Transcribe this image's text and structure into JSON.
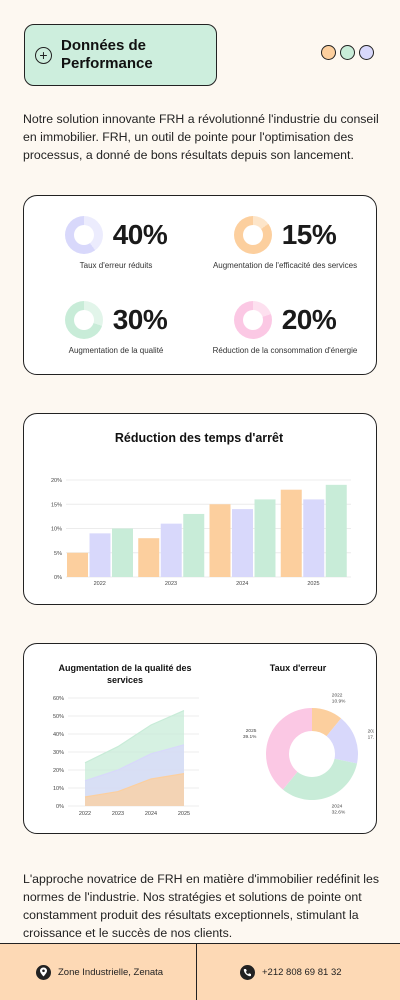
{
  "header": {
    "title_line1": "Données de",
    "title_line2": "Performance",
    "plus_glyph": "+",
    "dot_colors": [
      "#fccf9e",
      "#c8ecd8",
      "#d8d8fb"
    ]
  },
  "intro": "Notre solution innovante FRH a révolutionné l'industrie du conseil en immobilier. FRH, un outil de pointe pour l'optimisation des processus, a donné de bons résultats depuis son lancement.",
  "stats": [
    {
      "value": "40%",
      "fraction": 0.4,
      "label": "Taux d'erreur réduits",
      "color": "#d8d8fb",
      "track": "#ececfd"
    },
    {
      "value": "15%",
      "fraction": 0.15,
      "label": "Augmentation de l'efficacité des services",
      "color": "#fccf9e",
      "track": "#fde5c9"
    },
    {
      "value": "30%",
      "fraction": 0.3,
      "label": "Augmentation de la qualité",
      "color": "#c8ecd8",
      "track": "#e2f5ea"
    },
    {
      "value": "20%",
      "fraction": 0.2,
      "label": "Réduction de la consommation d'énergie",
      "color": "#fbc8e4",
      "track": "#fde0ef"
    }
  ],
  "chart_data": [
    {
      "type": "bar",
      "title": "Réduction des temps d'arrêt",
      "categories": [
        "2022",
        "2023",
        "2024",
        "2025"
      ],
      "yticks": [
        "0%",
        "5%",
        "10%",
        "15%",
        "20%"
      ],
      "ylim": [
        0,
        20
      ],
      "series": [
        {
          "values": [
            5,
            8,
            15,
            18
          ],
          "color": "#fccf9e"
        },
        {
          "values": [
            9,
            11,
            14,
            16
          ],
          "color": "#d8d8fb"
        },
        {
          "values": [
            10,
            13,
            16,
            19
          ],
          "color": "#c8ecd8"
        }
      ],
      "grid": true
    },
    {
      "type": "area",
      "title_line1": "Augmentation de la qualité des",
      "title_line2": "services",
      "x": [
        "2022",
        "2023",
        "2024",
        "2025"
      ],
      "yticks": [
        "0%",
        "10%",
        "20%",
        "30%",
        "40%",
        "50%",
        "60%"
      ],
      "ylim": [
        0,
        60
      ],
      "series": [
        {
          "values": [
            5,
            8,
            15,
            18
          ],
          "color": "#fccf9e"
        },
        {
          "values": [
            14,
            20,
            29,
            34
          ],
          "color": "#d8d8fb"
        },
        {
          "values": [
            24,
            33,
            45,
            53
          ],
          "color": "#c8ecd8"
        }
      ],
      "grid": true
    },
    {
      "type": "pie",
      "title": "Taux d'erreur",
      "slices": [
        {
          "year": "2022",
          "pct": "10.9%",
          "value": 10.9,
          "color": "#fccf9e"
        },
        {
          "year": "2023",
          "pct": "17.4%",
          "value": 17.4,
          "color": "#d8d8fb"
        },
        {
          "year": "2024",
          "pct": "32.6%",
          "value": 32.6,
          "color": "#c8ecd8"
        },
        {
          "year": "2025",
          "pct": "39.1%",
          "value": 39.1,
          "color": "#fbc8e4"
        }
      ]
    }
  ],
  "footer": {
    "text": "L'approche novatrice de FRH en matière d'immobilier redéfinit les normes de l'industrie. Nos stratégies et solutions de pointe ont constamment produit des résultats exceptionnels, stimulant la croissance et le succès de nos clients.",
    "address": "Zone Industrielle, Zenata",
    "phone": "+212 808 69 81 32"
  }
}
